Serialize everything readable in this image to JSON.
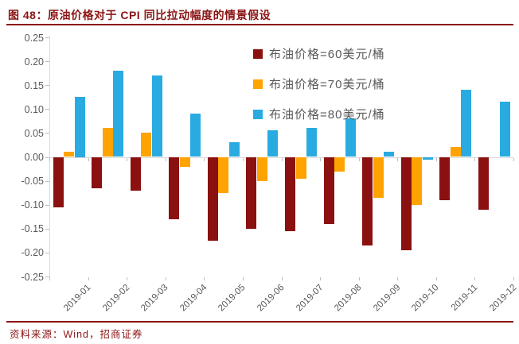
{
  "header": {
    "title": "图 48：原油价格对于 CPI 同比拉动幅度的情景假设"
  },
  "footer": {
    "source": "资料来源：Wind，招商证券"
  },
  "colors": {
    "accent_red": "#8B1414",
    "series_60": "#8B1111",
    "series_70": "#FFA300",
    "series_80": "#29ABE2",
    "axis_text": "#595959",
    "axis_line": "#D9D9D9"
  },
  "chart_data": {
    "type": "bar",
    "title": "图 48：原油价格对于 CPI 同比拉动幅度的情景假设",
    "xlabel": "",
    "ylabel": "",
    "ylim": [
      -0.25,
      0.25
    ],
    "ytick_step": 0.05,
    "ytick_labels": [
      "0.25",
      "0.20",
      "0.15",
      "0.10",
      "0.05",
      "0.00",
      "-0.05",
      "-0.10",
      "-0.15",
      "-0.20",
      "-0.25"
    ],
    "grid": false,
    "legend_position": "top-right-inside",
    "xlabel_rotation": -45,
    "categories": [
      "2019-01",
      "2019-02",
      "2019-03",
      "2019-04",
      "2019-05",
      "2019-06",
      "2019-07",
      "2019-08",
      "2019-09",
      "2019-10",
      "2019-11",
      "2019-12"
    ],
    "series": [
      {
        "name": "布油价格=60美元/桶",
        "color": "#8B1111",
        "values": [
          -0.105,
          -0.065,
          -0.07,
          -0.13,
          -0.175,
          -0.15,
          -0.155,
          -0.14,
          -0.185,
          -0.195,
          -0.09,
          -0.11
        ]
      },
      {
        "name": "布油价格=70美元/桶",
        "color": "#FFA300",
        "values": [
          0.01,
          0.06,
          0.05,
          -0.02,
          -0.075,
          -0.05,
          -0.045,
          -0.03,
          -0.085,
          -0.1,
          0.02,
          0.0
        ]
      },
      {
        "name": "布油价格=80美元/桶",
        "color": "#29ABE2",
        "values": [
          0.125,
          0.18,
          0.17,
          0.09,
          0.03,
          0.055,
          0.06,
          0.08,
          0.01,
          -0.005,
          0.14,
          0.115
        ]
      }
    ]
  }
}
